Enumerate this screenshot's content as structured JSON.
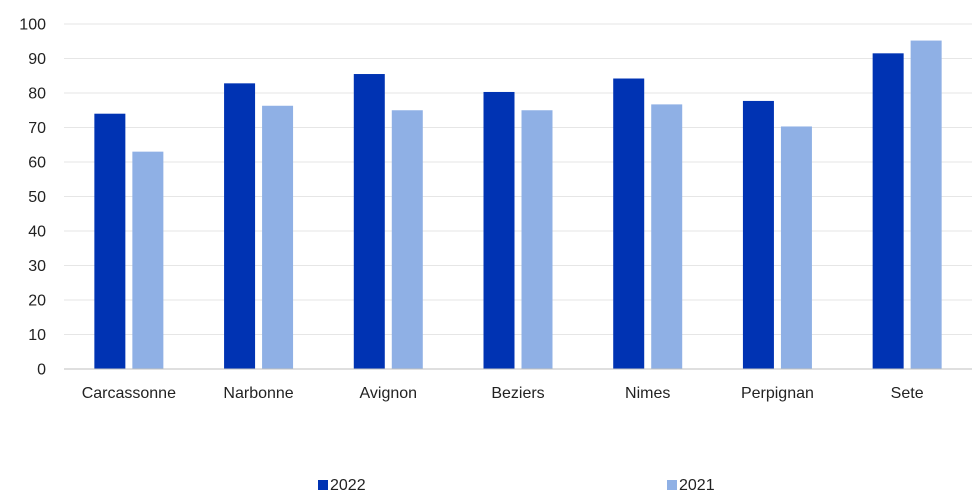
{
  "chart_data": {
    "type": "bar",
    "title": "",
    "xlabel": "",
    "ylabel": "",
    "categories": [
      "Carcassonne",
      "Narbonne",
      "Avignon",
      "Beziers",
      "Nimes",
      "Perpignan",
      "Sete"
    ],
    "series": [
      {
        "name": "2022",
        "color": "#0033B3",
        "values": [
          74,
          82.8,
          85.5,
          80.3,
          84.2,
          77.7,
          91.5
        ]
      },
      {
        "name": "2021",
        "color": "#8FB0E5",
        "values": [
          63,
          76.3,
          75,
          75,
          76.7,
          70.3,
          95.2
        ]
      }
    ],
    "ylim": [
      0,
      100
    ],
    "yticks": [
      0,
      10,
      20,
      30,
      40,
      50,
      60,
      70,
      80,
      90,
      100
    ],
    "grid": true,
    "legend_position": "bottom"
  }
}
